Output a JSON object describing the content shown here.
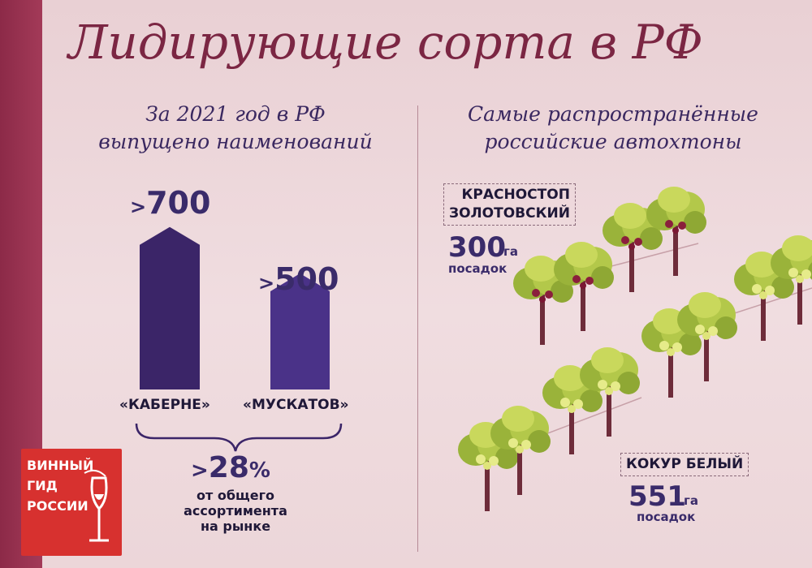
{
  "title": "Лидирующие сорта в РФ",
  "left": {
    "subhead_lines": [
      "За 2021 год в РФ",
      "выпущено наименований"
    ],
    "bars": [
      {
        "prefix": ">",
        "number": "700",
        "value": 700,
        "label": "«КАБЕРНЕ»",
        "color": "#3b2568"
      },
      {
        "prefix": ">",
        "number": "500",
        "value": 500,
        "label": "«МУСКАТОВ»",
        "color": "#4a3288"
      }
    ],
    "share": {
      "prefix": ">",
      "number": "28",
      "suffix": "%",
      "lines": [
        "от общего",
        "ассортимента",
        "на рынке"
      ]
    }
  },
  "right": {
    "subhead_lines": [
      "Самые распространённые",
      "российские автохтоны"
    ],
    "varieties": [
      {
        "name_lines": [
          "КРАСНОСТОП",
          "ЗОЛОТОВСКИЙ"
        ],
        "number": "300",
        "unit": "га",
        "plant": "посадок",
        "grape": "red"
      },
      {
        "name_lines": [
          "КОКУР БЕЛЫЙ"
        ],
        "number": "551",
        "unit": "га",
        "plant": "посадок",
        "grape": "white"
      }
    ]
  },
  "logo": {
    "lines": [
      "ВИННЫЙ",
      "ГИД",
      "РОССИИ"
    ],
    "color": "#d7312f"
  },
  "colors": {
    "accent": "#7b2643",
    "text_dark": "#3a2860",
    "bg": "#ecd5d8"
  }
}
